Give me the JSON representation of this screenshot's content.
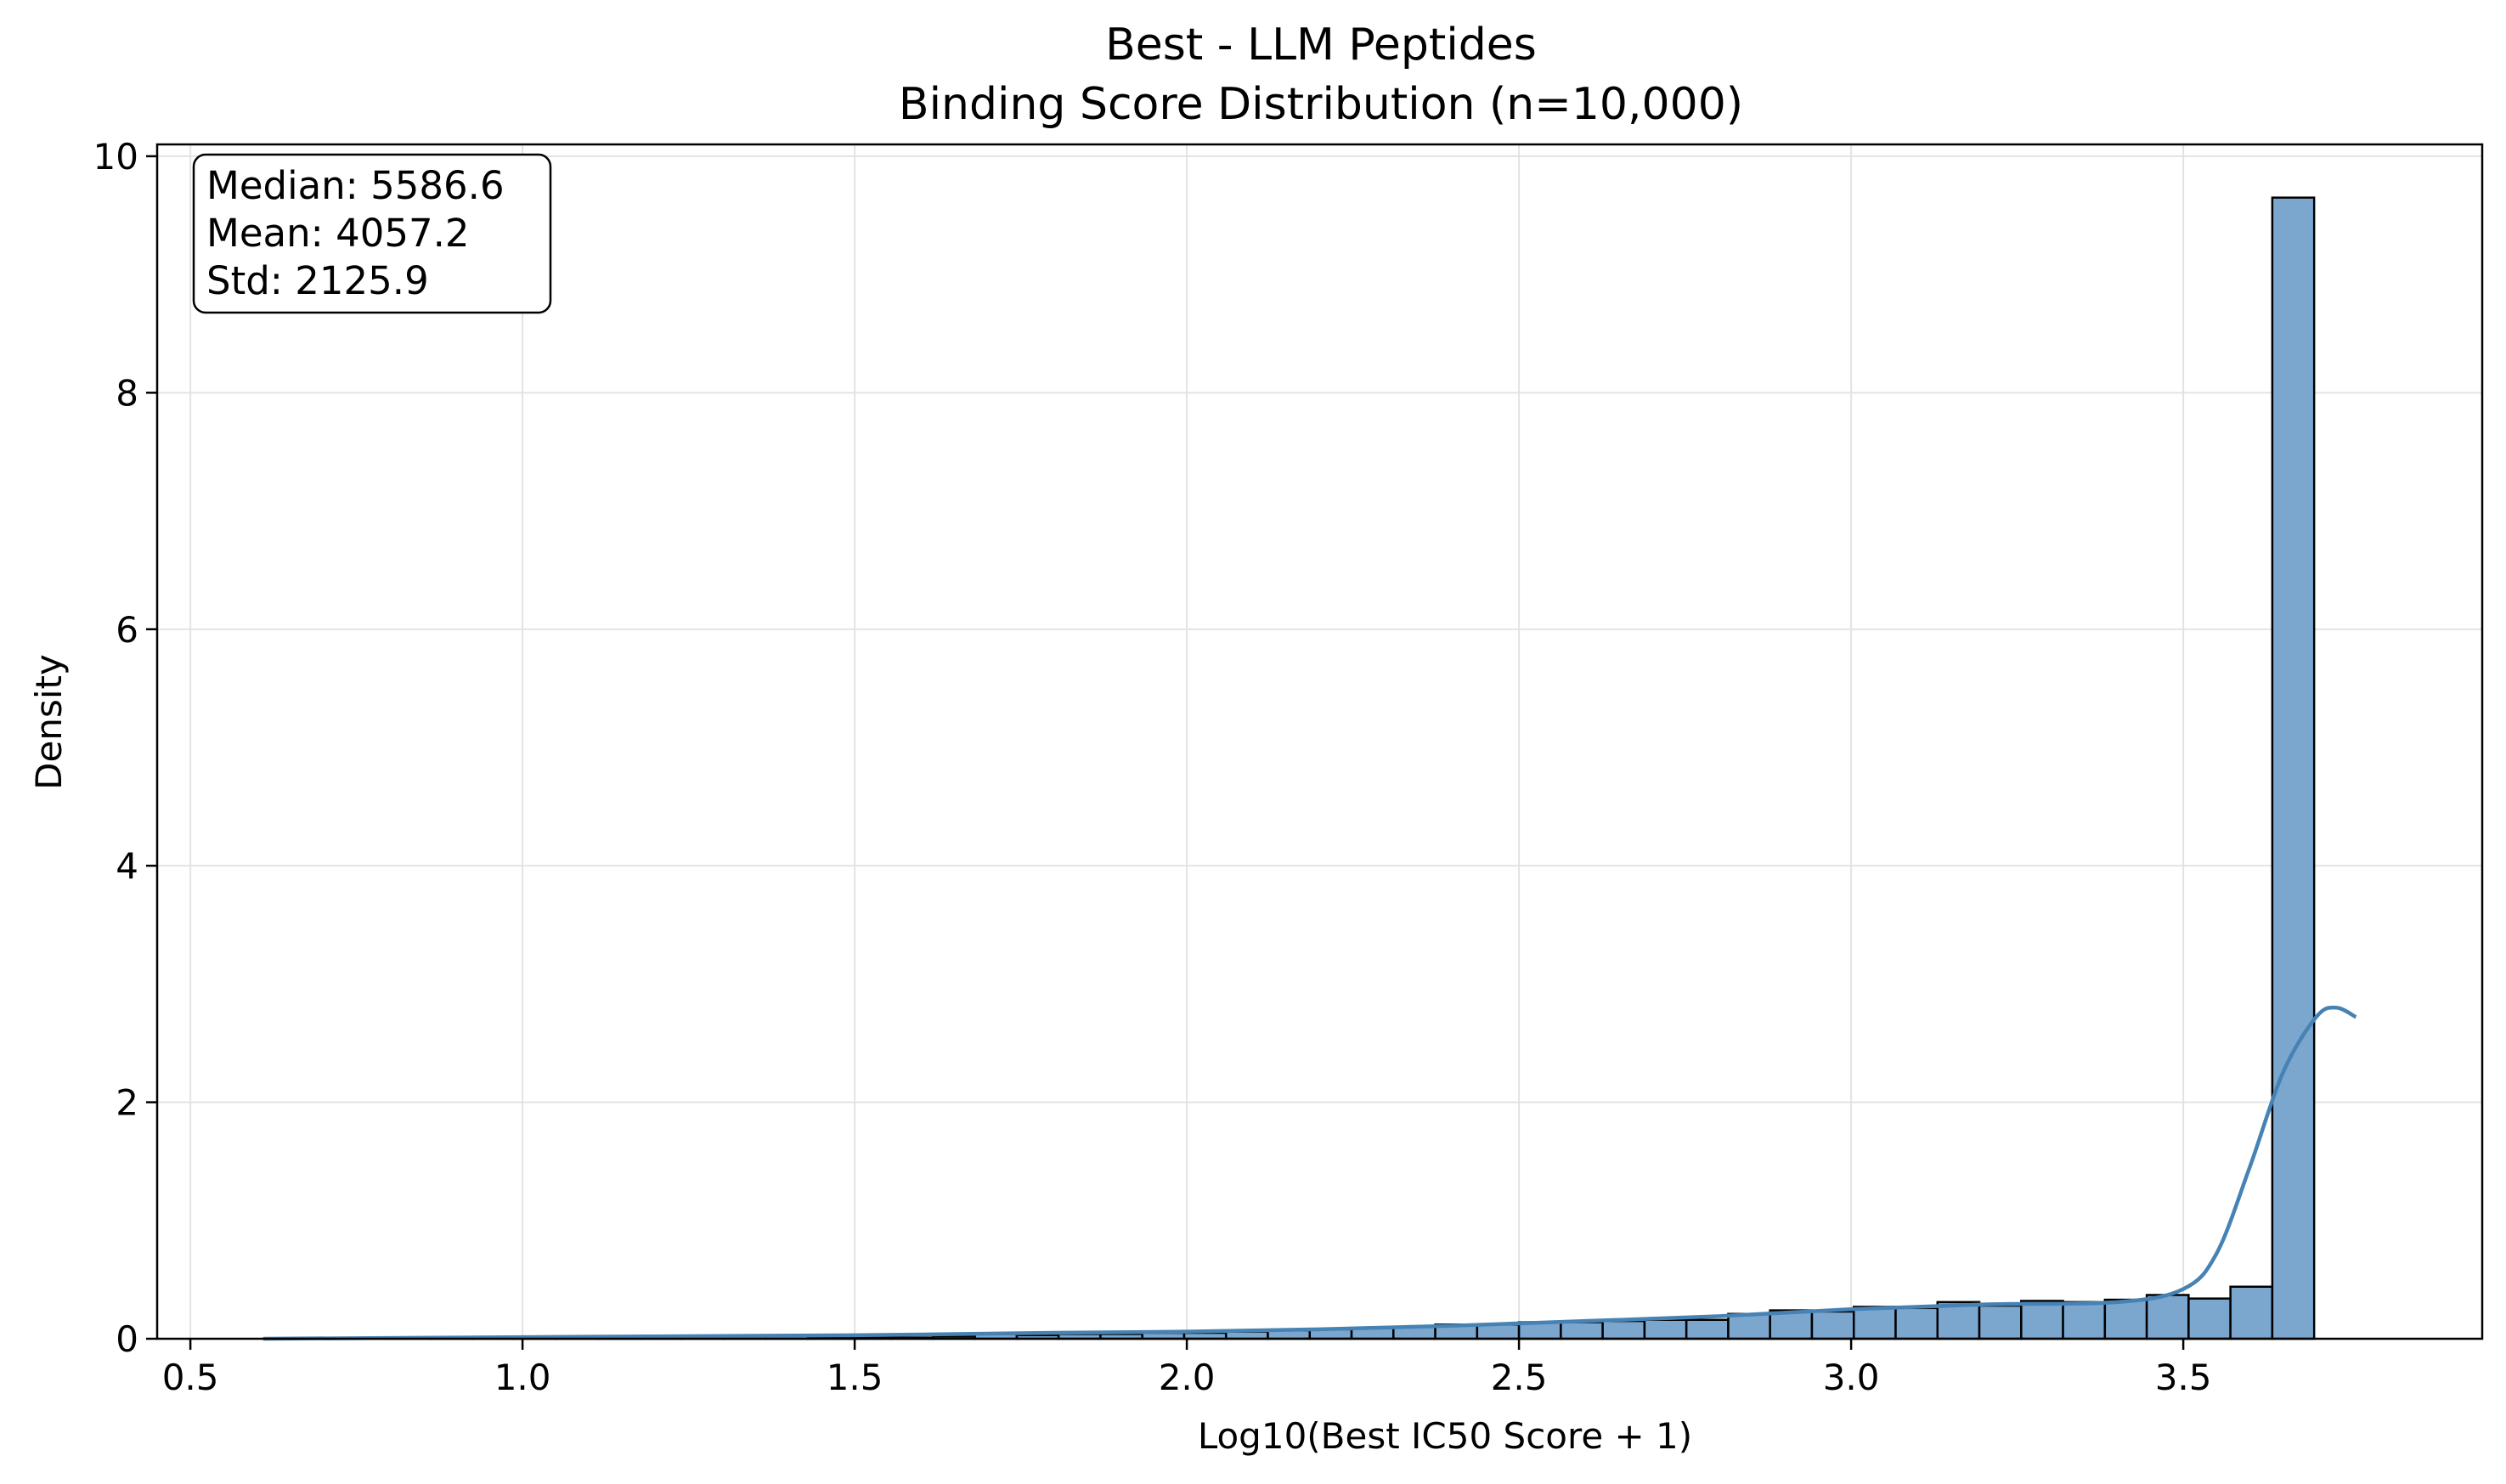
{
  "chart_data": {
    "type": "bar",
    "title": "Best - LLM Peptides",
    "subtitle": "Binding Score Distribution (n=10,000)",
    "xlabel": "Log10(Best IC50 Score + 1)",
    "ylabel": "Density",
    "xlim": [
      0.45,
      3.95
    ],
    "ylim": [
      0,
      10.1
    ],
    "xticks": [
      0.5,
      1.0,
      1.5,
      2.0,
      2.5,
      3.0,
      3.5
    ],
    "xtick_labels": [
      "0.5",
      "1.0",
      "1.5",
      "2.0",
      "2.5",
      "3.0",
      "3.5"
    ],
    "yticks": [
      0,
      2,
      4,
      6,
      8,
      10
    ],
    "ytick_labels": [
      "0",
      "2",
      "4",
      "6",
      "8",
      "10"
    ],
    "grid": true,
    "bar_color": "#7ba7cf",
    "bar_edge_color": "#000000",
    "kde_color": "#4682b4",
    "bins": {
      "start": 0.61,
      "width": 0.063,
      "values": [
        0.0,
        0.0,
        0.0,
        0.0,
        0.0,
        0.0,
        0.0,
        0.0,
        0.0,
        0.0,
        0.0,
        0.0,
        0.0,
        0.01,
        0.01,
        0.01,
        0.02,
        0.04,
        0.03,
        0.04,
        0.04,
        0.05,
        0.05,
        0.06,
        0.07,
        0.08,
        0.09,
        0.1,
        0.12,
        0.12,
        0.14,
        0.14,
        0.15,
        0.16,
        0.16,
        0.21,
        0.24,
        0.23,
        0.27,
        0.26,
        0.31,
        0.28,
        0.32,
        0.31,
        0.33,
        0.37,
        0.34,
        0.44,
        9.65
      ]
    },
    "kde": {
      "x": [
        0.61,
        0.9,
        1.2,
        1.5,
        1.8,
        2.0,
        2.2,
        2.4,
        2.6,
        2.8,
        3.0,
        3.2,
        3.4,
        3.5,
        3.55,
        3.6,
        3.65,
        3.7,
        3.73,
        3.76
      ],
      "y": [
        0.0,
        0.01,
        0.02,
        0.03,
        0.05,
        0.06,
        0.08,
        0.11,
        0.15,
        0.19,
        0.25,
        0.29,
        0.31,
        0.42,
        0.72,
        1.45,
        2.25,
        2.72,
        2.8,
        2.72
      ]
    }
  },
  "stats_box": {
    "median": "Median: 5586.6",
    "mean": "Mean: 4057.2",
    "std": "Std: 2125.9"
  }
}
